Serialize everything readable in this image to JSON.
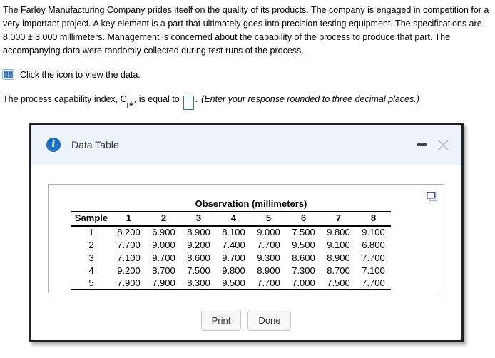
{
  "problem": {
    "statement": "The Farley Manufacturing Company prides itself on the quality of its products. The company is engaged in competition for a very important project. A key element is a part that ultimately goes into precision testing equipment. The specifications are 8.000 ± 3.000 millimeters. Management is concerned about the capability of the process to produce that part. The accompanying data were randomly collected during test runs of the process.",
    "icon_instruction": "Click the icon to view the data."
  },
  "question": {
    "prefix": "The process capability index, C",
    "subscript": "pk",
    "middle": ", is equal to",
    "answer_value": "",
    "period": ".",
    "hint": "(Enter your response rounded to three decimal places.)"
  },
  "dialog": {
    "title": "Data Table",
    "table": {
      "span_header": "Observation (millimeters)",
      "columns": [
        "Sample",
        "1",
        "2",
        "3",
        "4",
        "5",
        "6",
        "7",
        "8"
      ],
      "rows": [
        [
          "1",
          "8.200",
          "6.900",
          "8.900",
          "8.100",
          "9.000",
          "7.500",
          "9.800",
          "9.100"
        ],
        [
          "2",
          "7.700",
          "9.000",
          "9.200",
          "7.400",
          "7.700",
          "9.500",
          "9.100",
          "6.800"
        ],
        [
          "3",
          "7.100",
          "9.700",
          "8.600",
          "9.700",
          "9.300",
          "8.600",
          "8.900",
          "7.700"
        ],
        [
          "4",
          "9.200",
          "8.700",
          "7.500",
          "9.800",
          "8.900",
          "7.300",
          "8.700",
          "7.100"
        ],
        [
          "5",
          "7.900",
          "7.900",
          "8.300",
          "9.500",
          "7.700",
          "7.000",
          "7.500",
          "7.700"
        ]
      ]
    },
    "buttons": {
      "print": "Print",
      "done": "Done"
    }
  },
  "icons": {
    "data_table_icon": "table-grid",
    "info_icon": "info-circle",
    "minimize_icon": "minimize-dash",
    "close_icon": "close-x",
    "popout_icon": "open-in-new-window"
  },
  "colors": {
    "grid_icon_blue": "#2e7ce1",
    "grid_icon_border": "#8fb4ea",
    "info_icon_blue": "#1b6fc6",
    "answer_input_border": "#17809d",
    "popout_icon_front": "#4a55a8",
    "popout_icon_back": "#aab6d8",
    "dialog_header_bg": "#edf3fb",
    "dialog_border": "#212121"
  }
}
